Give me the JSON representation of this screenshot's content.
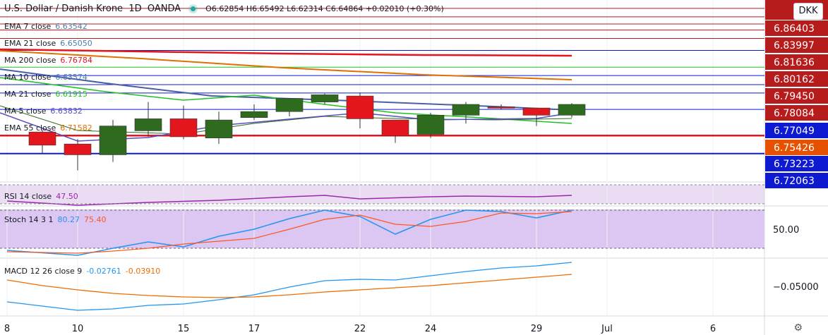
{
  "header": {
    "symbol": "U.S. Dollar / Danish Krone",
    "interval": "1D",
    "broker": "OANDA",
    "ohlc": "O6.62854 H6.65492 L6.62314 C6.64864 +0.02010 (+0.30%)"
  },
  "currency_badge": "DKK",
  "colors": {
    "up": "#2e6b1f",
    "down": "#e3161e",
    "accent": "#26a69a"
  },
  "indicators": [
    {
      "label": "EMA 7 close",
      "value": "6.63542",
      "color": "#4a7fa8"
    },
    {
      "label": "EMA 21 close",
      "value": "6.65050",
      "color": "#4a7fa8"
    },
    {
      "label": "MA 200 close",
      "value": "6.76784",
      "color": "#e3161e"
    },
    {
      "label": "MA 10 close",
      "value": "6.63574",
      "color": "#4a7fa8"
    },
    {
      "label": "MA 21 close",
      "value": "6.61915",
      "color": "#1fc11f"
    },
    {
      "label": "MA 5 close",
      "value": "6.63832",
      "color": "#5b4fbf"
    },
    {
      "label": "EMA 55 close",
      "value": "6.71582",
      "color": "#e07000"
    }
  ],
  "rsi": {
    "label": "RSI 14 close",
    "value": "47.50"
  },
  "stoch": {
    "label": "Stoch 14 3 1",
    "k": "80.27",
    "d": "75.40",
    "axis": "50.00"
  },
  "macd": {
    "label": "MACD 12 26 close 9",
    "macd": "-0.02761",
    "signal": "-0.03910",
    "axis": "−0.05000"
  },
  "chart_data": {
    "type": "candlestick",
    "x_ticks": [
      "8",
      "10",
      "15",
      "17",
      "22",
      "24",
      "29",
      "Jul",
      "6"
    ],
    "price_axis_labels": [
      "6.86403",
      "6.83997",
      "6.81636",
      "6.80162",
      "6.79450",
      "6.78084",
      "6.77049",
      "6.75426",
      "6.73223",
      "6.72063"
    ],
    "highlighted_labels": [
      {
        "text": "6.86403",
        "color": "#b71c1c"
      },
      {
        "text": "6.83997",
        "color": "#b71c1c"
      },
      {
        "text": "6.81636",
        "color": "#b71c1c"
      },
      {
        "text": "6.80162",
        "color": "#b71c1c"
      },
      {
        "text": "6.79450",
        "color": "#b71c1c"
      },
      {
        "text": "6.78084",
        "color": "#b71c1c"
      },
      {
        "text": "6.77049",
        "color": "#0d1ad1"
      },
      {
        "text": "6.75426",
        "color": "#e65100"
      },
      {
        "text": "6.73223",
        "color": "#0d1ad1"
      },
      {
        "text": "6.72063",
        "color": "#0d1ad1"
      }
    ],
    "candles": [
      {
        "o": 6.762,
        "h": 6.764,
        "l": 6.744,
        "c": 6.751
      },
      {
        "o": 6.752,
        "h": 6.756,
        "l": 6.73,
        "c": 6.743
      },
      {
        "o": 6.743,
        "h": 6.772,
        "l": 6.737,
        "c": 6.767
      },
      {
        "o": 6.763,
        "h": 6.787,
        "l": 6.758,
        "c": 6.773
      },
      {
        "o": 6.773,
        "h": 6.784,
        "l": 6.756,
        "c": 6.758
      },
      {
        "o": 6.757,
        "h": 6.779,
        "l": 6.752,
        "c": 6.772
      },
      {
        "o": 6.774,
        "h": 6.785,
        "l": 6.772,
        "c": 6.779
      },
      {
        "o": 6.779,
        "h": 6.79,
        "l": 6.775,
        "c": 6.79
      },
      {
        "o": 6.787,
        "h": 6.794,
        "l": 6.785,
        "c": 6.793
      },
      {
        "o": 6.792,
        "h": 6.795,
        "l": 6.765,
        "c": 6.773
      },
      {
        "o": 6.772,
        "h": 6.772,
        "l": 6.753,
        "c": 6.759
      },
      {
        "o": 6.76,
        "h": 6.778,
        "l": 6.757,
        "c": 6.776
      },
      {
        "o": 6.776,
        "h": 6.787,
        "l": 6.769,
        "c": 6.785
      },
      {
        "o": 6.783,
        "h": 6.785,
        "l": 6.781,
        "c": 6.782
      },
      {
        "o": 6.782,
        "h": 6.782,
        "l": 6.767,
        "c": 6.776
      },
      {
        "o": 6.776,
        "h": 6.786,
        "l": 6.774,
        "c": 6.785
      }
    ]
  }
}
